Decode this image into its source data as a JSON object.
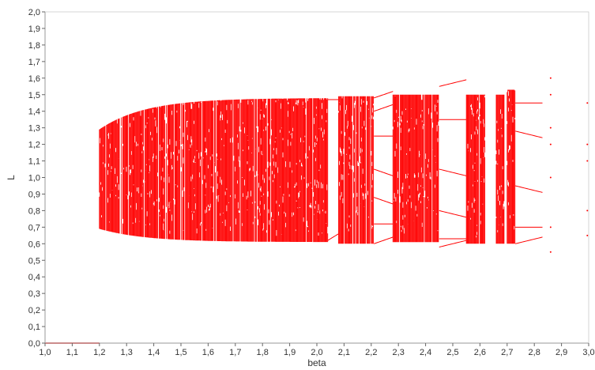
{
  "chart_data": {
    "type": "scatter",
    "title": "",
    "xlabel": "beta",
    "ylabel": "L",
    "xlim": [
      1.0,
      3.0
    ],
    "ylim": [
      0.0,
      2.0
    ],
    "x_ticks": [
      "1,0",
      "1,1",
      "1,2",
      "1,3",
      "1,4",
      "1,5",
      "1,6",
      "1,7",
      "1,8",
      "1,9",
      "2,0",
      "2,1",
      "2,2",
      "2,3",
      "2,4",
      "2,5",
      "2,6",
      "2,7",
      "2,8",
      "2,9",
      "3,0"
    ],
    "y_ticks": [
      "0,0",
      "0,1",
      "0,2",
      "0,3",
      "0,4",
      "0,5",
      "0,6",
      "0,7",
      "0,8",
      "0,9",
      "1,0",
      "1,1",
      "1,2",
      "1,3",
      "1,4",
      "1,5",
      "1,6",
      "1,7",
      "1,8",
      "1,9",
      "2,0"
    ],
    "grid": false,
    "series": [
      {
        "color": "#ff0000",
        "description_points": "bifurcation diagram of L versus beta",
        "stable_fixed_point": {
          "beta_range": [
            1.0,
            1.2
          ],
          "L": 0.0
        },
        "chaotic_bands": [
          {
            "beta_range": [
              1.2,
              2.04
            ],
            "L_min_start": 0.69,
            "L_max_start": 1.29,
            "L_min_end": 0.61,
            "L_max_end": 1.48
          },
          {
            "beta_range": [
              2.08,
              2.21
            ],
            "L_min": 0.6,
            "L_max": 1.49
          },
          {
            "beta_range": [
              2.28,
              2.45
            ],
            "L_min": 0.61,
            "L_max": 1.5
          },
          {
            "beta_range": [
              2.55,
              2.62
            ],
            "L_min": 0.6,
            "L_max": 1.5
          },
          {
            "beta_range": [
              2.66,
              2.69
            ],
            "L_min": 0.6,
            "L_max": 1.5
          },
          {
            "beta_range": [
              2.7,
              2.73
            ],
            "L_min": 0.6,
            "L_max": 1.53
          }
        ],
        "periodic_windows": [
          {
            "beta_range": [
              2.04,
              2.08
            ],
            "L": [
              0.62,
              1.47
            ]
          },
          {
            "beta_range": [
              2.21,
              2.28
            ],
            "L": [
              0.6,
              0.72,
              0.88,
              1.05,
              1.25,
              1.4,
              1.48
            ]
          },
          {
            "beta_range": [
              2.45,
              2.55
            ],
            "L": [
              0.58,
              0.63,
              0.8,
              1.05,
              1.35,
              1.55
            ]
          },
          {
            "beta_range": [
              2.73,
              2.83
            ],
            "L": [
              0.6,
              0.7,
              0.95,
              1.28,
              1.45
            ]
          }
        ]
      }
    ]
  },
  "axes": {
    "x_label": "beta",
    "y_label": "L"
  }
}
